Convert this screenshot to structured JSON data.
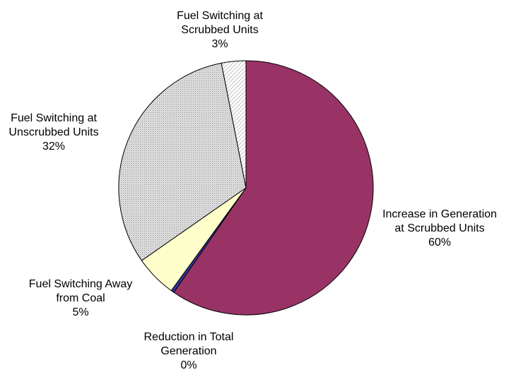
{
  "chart_data": {
    "type": "pie",
    "start_angle_deg": 0,
    "direction": "clockwise",
    "slices": [
      {
        "label_lines": [
          "Increase in Generation",
          "at Scrubbed Units",
          "60%"
        ],
        "value": 59.6,
        "color": "#993366",
        "pattern": "solid"
      },
      {
        "label_lines": [
          "Reduction in Total",
          "Generation",
          "0%"
        ],
        "value": 0.4,
        "color": "#333399",
        "pattern": "solid"
      },
      {
        "label_lines": [
          "Fuel Switching Away",
          "from Coal",
          "5%"
        ],
        "value": 5.3,
        "color": "#ffffcc",
        "pattern": "solid"
      },
      {
        "label_lines": [
          "Fuel Switching at",
          "Unscrubbed Units",
          "32%"
        ],
        "value": 31.6,
        "color": "#d9d9d9",
        "pattern": "dots"
      },
      {
        "label_lines": [
          "Fuel Switching at",
          "Scrubbed Units",
          "3%"
        ],
        "value": 3.1,
        "color": "#ffffff",
        "pattern": "hatch"
      }
    ]
  }
}
